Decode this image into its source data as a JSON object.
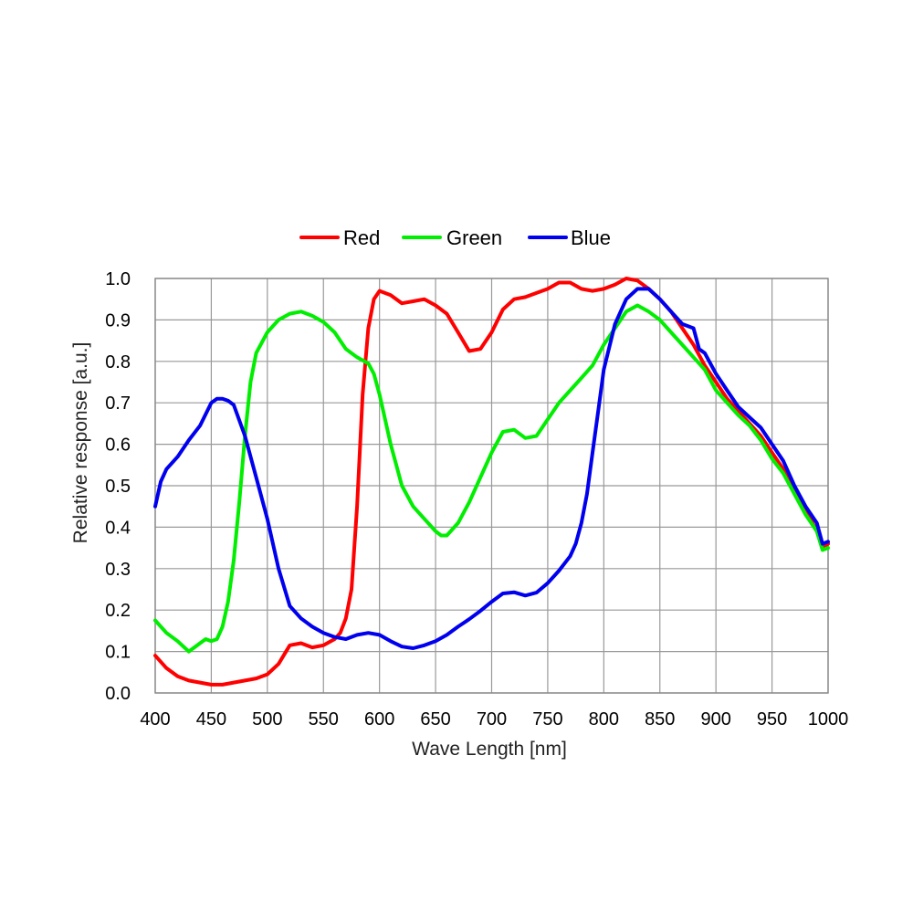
{
  "chart_data": {
    "type": "line",
    "title": "",
    "xlabel": "Wave Length [nm]",
    "ylabel": "Relative response [a.u.]",
    "xlim": [
      400,
      1000
    ],
    "ylim": [
      0.0,
      1.0
    ],
    "grid": true,
    "legend_position": "top-center",
    "x_ticks": [
      "400",
      "450",
      "500",
      "550",
      "600",
      "650",
      "700",
      "750",
      "800",
      "850",
      "900",
      "950",
      "1000"
    ],
    "y_ticks": [
      "0.0",
      "0.1",
      "0.2",
      "0.3",
      "0.4",
      "0.5",
      "0.6",
      "0.7",
      "0.8",
      "0.9",
      "1.0"
    ],
    "series": [
      {
        "name": "Red",
        "color": "#ff0000",
        "points": [
          [
            400,
            0.09
          ],
          [
            410,
            0.06
          ],
          [
            420,
            0.04
          ],
          [
            430,
            0.03
          ],
          [
            440,
            0.025
          ],
          [
            450,
            0.02
          ],
          [
            460,
            0.02
          ],
          [
            470,
            0.025
          ],
          [
            480,
            0.03
          ],
          [
            490,
            0.035
          ],
          [
            500,
            0.045
          ],
          [
            510,
            0.07
          ],
          [
            520,
            0.115
          ],
          [
            530,
            0.12
          ],
          [
            540,
            0.11
          ],
          [
            550,
            0.115
          ],
          [
            560,
            0.13
          ],
          [
            565,
            0.145
          ],
          [
            570,
            0.18
          ],
          [
            575,
            0.25
          ],
          [
            580,
            0.45
          ],
          [
            585,
            0.72
          ],
          [
            590,
            0.88
          ],
          [
            595,
            0.95
          ],
          [
            600,
            0.97
          ],
          [
            610,
            0.96
          ],
          [
            620,
            0.94
          ],
          [
            630,
            0.945
          ],
          [
            640,
            0.95
          ],
          [
            650,
            0.935
          ],
          [
            660,
            0.915
          ],
          [
            670,
            0.87
          ],
          [
            680,
            0.825
          ],
          [
            690,
            0.83
          ],
          [
            700,
            0.87
          ],
          [
            710,
            0.925
          ],
          [
            720,
            0.95
          ],
          [
            730,
            0.955
          ],
          [
            740,
            0.965
          ],
          [
            750,
            0.975
          ],
          [
            760,
            0.99
          ],
          [
            770,
            0.99
          ],
          [
            780,
            0.975
          ],
          [
            790,
            0.97
          ],
          [
            800,
            0.975
          ],
          [
            810,
            0.985
          ],
          [
            820,
            1.0
          ],
          [
            830,
            0.995
          ],
          [
            840,
            0.975
          ],
          [
            850,
            0.95
          ],
          [
            860,
            0.92
          ],
          [
            870,
            0.88
          ],
          [
            880,
            0.84
          ],
          [
            890,
            0.79
          ],
          [
            900,
            0.75
          ],
          [
            910,
            0.71
          ],
          [
            920,
            0.68
          ],
          [
            930,
            0.65
          ],
          [
            940,
            0.62
          ],
          [
            950,
            0.58
          ],
          [
            960,
            0.54
          ],
          [
            970,
            0.49
          ],
          [
            980,
            0.44
          ],
          [
            990,
            0.39
          ],
          [
            995,
            0.35
          ],
          [
            1000,
            0.36
          ]
        ]
      },
      {
        "name": "Green",
        "color": "#00ee00",
        "points": [
          [
            400,
            0.175
          ],
          [
            410,
            0.145
          ],
          [
            420,
            0.125
          ],
          [
            430,
            0.1
          ],
          [
            440,
            0.12
          ],
          [
            445,
            0.13
          ],
          [
            450,
            0.125
          ],
          [
            455,
            0.13
          ],
          [
            460,
            0.16
          ],
          [
            465,
            0.22
          ],
          [
            470,
            0.32
          ],
          [
            475,
            0.46
          ],
          [
            480,
            0.62
          ],
          [
            485,
            0.75
          ],
          [
            490,
            0.82
          ],
          [
            500,
            0.87
          ],
          [
            510,
            0.9
          ],
          [
            520,
            0.915
          ],
          [
            530,
            0.92
          ],
          [
            540,
            0.91
          ],
          [
            550,
            0.895
          ],
          [
            560,
            0.87
          ],
          [
            570,
            0.83
          ],
          [
            580,
            0.81
          ],
          [
            590,
            0.795
          ],
          [
            595,
            0.77
          ],
          [
            600,
            0.72
          ],
          [
            610,
            0.6
          ],
          [
            620,
            0.5
          ],
          [
            630,
            0.45
          ],
          [
            640,
            0.42
          ],
          [
            650,
            0.39
          ],
          [
            655,
            0.38
          ],
          [
            660,
            0.38
          ],
          [
            670,
            0.41
          ],
          [
            680,
            0.46
          ],
          [
            690,
            0.52
          ],
          [
            700,
            0.58
          ],
          [
            710,
            0.63
          ],
          [
            720,
            0.635
          ],
          [
            730,
            0.615
          ],
          [
            740,
            0.62
          ],
          [
            750,
            0.66
          ],
          [
            760,
            0.7
          ],
          [
            770,
            0.73
          ],
          [
            780,
            0.76
          ],
          [
            790,
            0.79
          ],
          [
            800,
            0.84
          ],
          [
            810,
            0.88
          ],
          [
            820,
            0.92
          ],
          [
            830,
            0.935
          ],
          [
            840,
            0.92
          ],
          [
            850,
            0.9
          ],
          [
            860,
            0.87
          ],
          [
            870,
            0.84
          ],
          [
            880,
            0.81
          ],
          [
            890,
            0.78
          ],
          [
            900,
            0.73
          ],
          [
            910,
            0.7
          ],
          [
            920,
            0.67
          ],
          [
            930,
            0.645
          ],
          [
            940,
            0.61
          ],
          [
            950,
            0.565
          ],
          [
            960,
            0.53
          ],
          [
            970,
            0.48
          ],
          [
            980,
            0.43
          ],
          [
            990,
            0.39
          ],
          [
            995,
            0.345
          ],
          [
            1000,
            0.35
          ]
        ]
      },
      {
        "name": "Blue",
        "color": "#0000ee",
        "points": [
          [
            400,
            0.45
          ],
          [
            405,
            0.51
          ],
          [
            410,
            0.54
          ],
          [
            420,
            0.57
          ],
          [
            430,
            0.61
          ],
          [
            440,
            0.645
          ],
          [
            450,
            0.7
          ],
          [
            455,
            0.71
          ],
          [
            460,
            0.71
          ],
          [
            465,
            0.705
          ],
          [
            470,
            0.695
          ],
          [
            480,
            0.62
          ],
          [
            490,
            0.52
          ],
          [
            500,
            0.42
          ],
          [
            510,
            0.3
          ],
          [
            520,
            0.21
          ],
          [
            530,
            0.18
          ],
          [
            540,
            0.16
          ],
          [
            550,
            0.145
          ],
          [
            560,
            0.135
          ],
          [
            570,
            0.13
          ],
          [
            580,
            0.14
          ],
          [
            590,
            0.145
          ],
          [
            600,
            0.14
          ],
          [
            610,
            0.125
          ],
          [
            620,
            0.112
          ],
          [
            630,
            0.108
          ],
          [
            640,
            0.115
          ],
          [
            650,
            0.125
          ],
          [
            660,
            0.14
          ],
          [
            670,
            0.16
          ],
          [
            680,
            0.178
          ],
          [
            690,
            0.198
          ],
          [
            700,
            0.22
          ],
          [
            710,
            0.24
          ],
          [
            720,
            0.243
          ],
          [
            730,
            0.235
          ],
          [
            740,
            0.242
          ],
          [
            750,
            0.265
          ],
          [
            760,
            0.295
          ],
          [
            770,
            0.33
          ],
          [
            775,
            0.36
          ],
          [
            780,
            0.41
          ],
          [
            785,
            0.48
          ],
          [
            790,
            0.58
          ],
          [
            795,
            0.68
          ],
          [
            800,
            0.78
          ],
          [
            810,
            0.89
          ],
          [
            820,
            0.95
          ],
          [
            830,
            0.975
          ],
          [
            840,
            0.975
          ],
          [
            850,
            0.95
          ],
          [
            860,
            0.92
          ],
          [
            870,
            0.89
          ],
          [
            880,
            0.88
          ],
          [
            885,
            0.83
          ],
          [
            890,
            0.82
          ],
          [
            900,
            0.77
          ],
          [
            910,
            0.73
          ],
          [
            920,
            0.69
          ],
          [
            930,
            0.665
          ],
          [
            940,
            0.64
          ],
          [
            950,
            0.6
          ],
          [
            960,
            0.56
          ],
          [
            970,
            0.5
          ],
          [
            980,
            0.45
          ],
          [
            990,
            0.41
          ],
          [
            995,
            0.36
          ],
          [
            1000,
            0.365
          ]
        ]
      }
    ]
  }
}
